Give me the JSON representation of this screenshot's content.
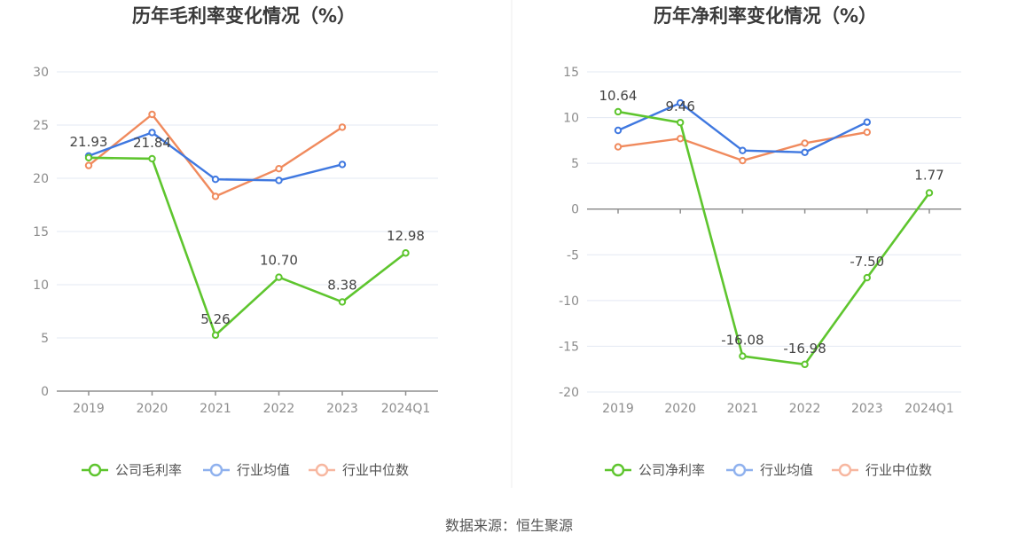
{
  "source_text": "数据来源：恒生聚源",
  "colors": {
    "company": "#5ec52e",
    "industry_avg": "#3f78e0",
    "industry_median": "#f08a5d",
    "legend_avg": "#8fb1ee",
    "legend_median": "#f7b7a0"
  },
  "chart_data": [
    {
      "type": "line",
      "title": "历年毛利率变化情况（%）",
      "categories": [
        "2019",
        "2020",
        "2021",
        "2022",
        "2023",
        "2024Q1"
      ],
      "ylim": [
        0,
        30
      ],
      "yticks": [
        0,
        5,
        10,
        15,
        20,
        25,
        30
      ],
      "grid": true,
      "legend": "bottom",
      "series": [
        {
          "name": "公司毛利率",
          "values": [
            21.93,
            21.84,
            5.26,
            10.7,
            8.38,
            12.98
          ],
          "labels": [
            "21.93",
            "21.84",
            "5.26",
            "10.70",
            "8.38",
            "12.98"
          ]
        },
        {
          "name": "行业均值",
          "values": [
            22.1,
            24.3,
            19.9,
            19.8,
            21.3,
            null
          ]
        },
        {
          "name": "行业中位数",
          "values": [
            21.2,
            26.0,
            18.3,
            20.9,
            24.8,
            null
          ]
        }
      ]
    },
    {
      "type": "line",
      "title": "历年净利率变化情况（%）",
      "categories": [
        "2019",
        "2020",
        "2021",
        "2022",
        "2023",
        "2024Q1"
      ],
      "ylim": [
        -20,
        15
      ],
      "yticks": [
        -20,
        -15,
        -10,
        -5,
        0,
        5,
        10,
        15
      ],
      "grid": true,
      "legend": "bottom",
      "series": [
        {
          "name": "公司净利率",
          "values": [
            10.64,
            9.46,
            -16.08,
            -16.98,
            -7.5,
            1.77
          ],
          "labels": [
            "10.64",
            "9.46",
            "-16.08",
            "-16.98",
            "-7.50",
            "1.77"
          ]
        },
        {
          "name": "行业均值",
          "values": [
            8.6,
            11.6,
            6.4,
            6.2,
            9.5,
            null
          ]
        },
        {
          "name": "行业中位数",
          "values": [
            6.8,
            7.7,
            5.3,
            7.2,
            8.4,
            null
          ]
        }
      ]
    }
  ]
}
